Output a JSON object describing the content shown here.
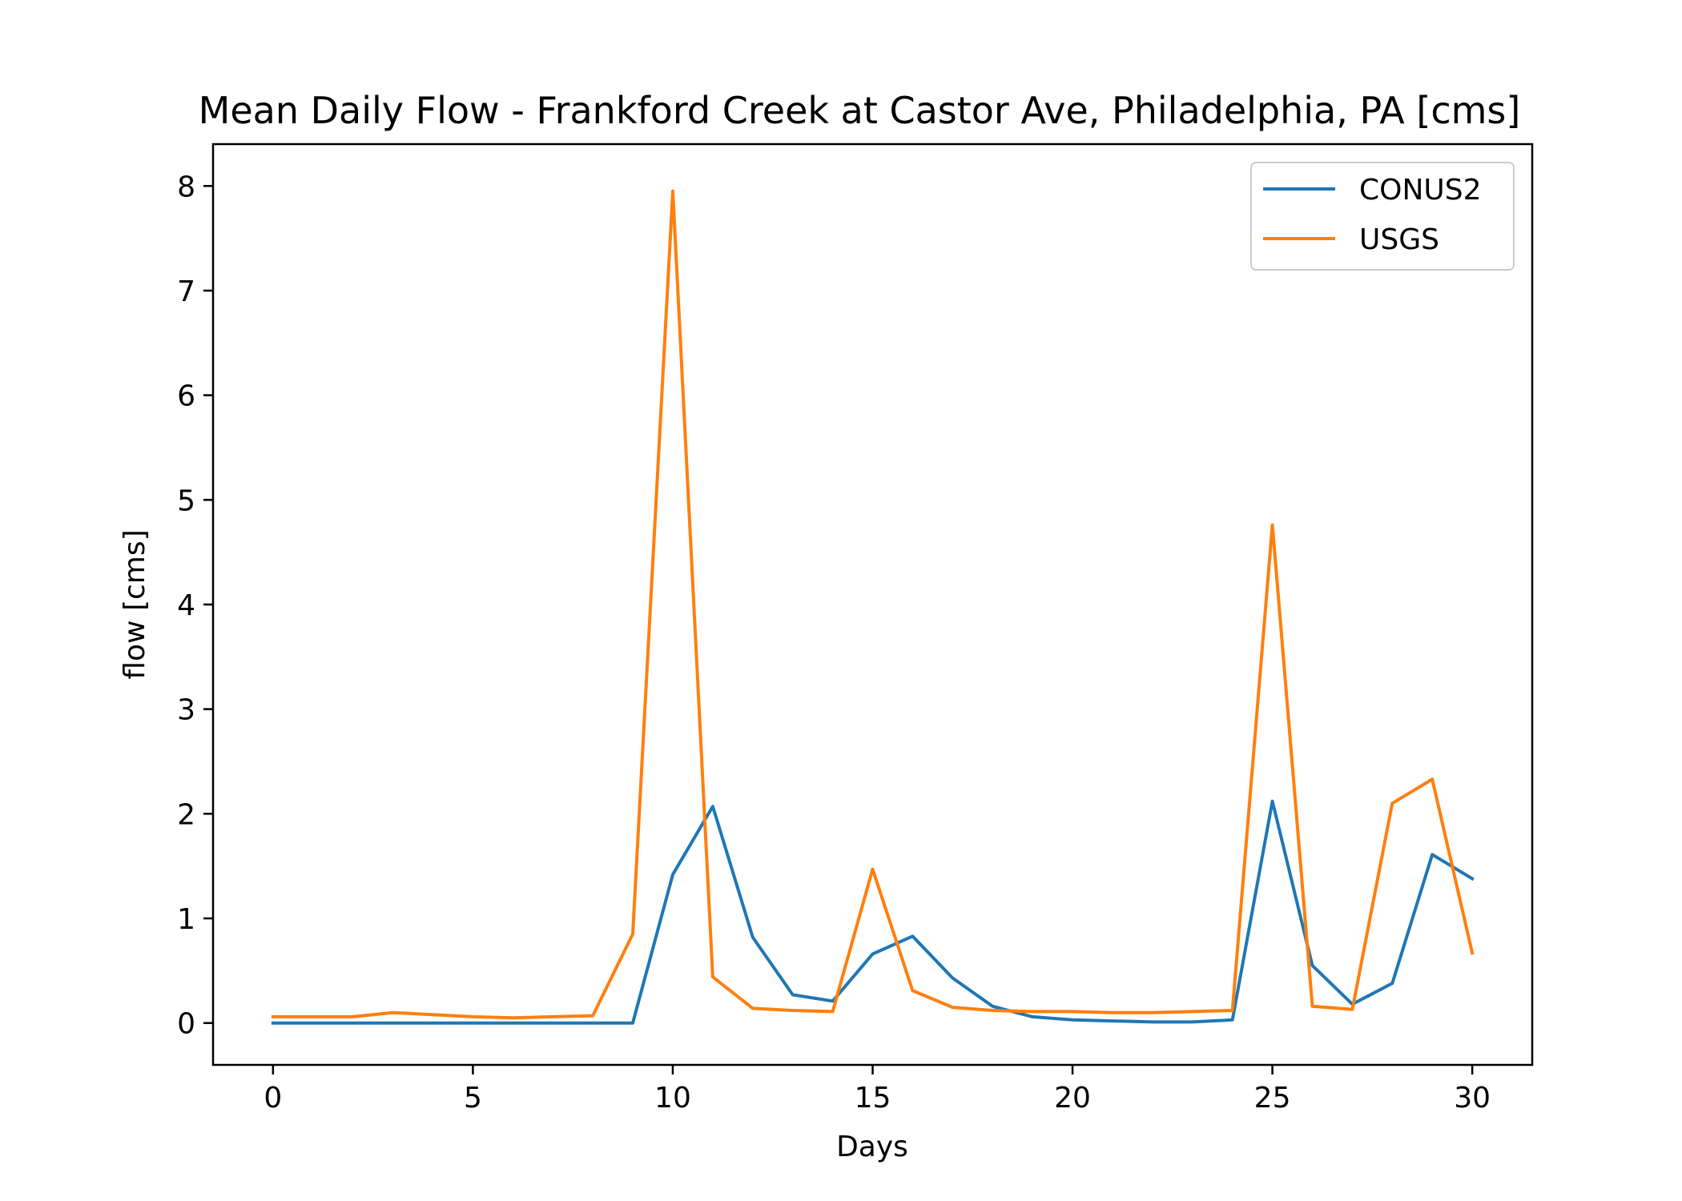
{
  "chart_data": {
    "type": "line",
    "title": "Mean Daily Flow - Frankford Creek at Castor Ave, Philadelphia, PA [cms]",
    "xlabel": "Days",
    "ylabel": "flow [cms]",
    "xlim": [
      -1.5,
      31.5
    ],
    "ylim": [
      -0.4,
      8.4
    ],
    "xticks": [
      0,
      5,
      10,
      15,
      20,
      25,
      30
    ],
    "yticks": [
      0,
      1,
      2,
      3,
      4,
      5,
      6,
      7,
      8
    ],
    "grid": false,
    "legend": "top-right",
    "x": [
      0,
      1,
      2,
      3,
      4,
      5,
      6,
      7,
      8,
      9,
      10,
      11,
      12,
      13,
      14,
      15,
      16,
      17,
      18,
      19,
      20,
      21,
      22,
      23,
      24,
      25,
      26,
      27,
      28,
      29,
      30
    ],
    "series": [
      {
        "name": "CONUS2",
        "color": "#1f77b4",
        "values": [
          0.0,
          0.0,
          0.0,
          0.0,
          0.0,
          0.0,
          0.0,
          0.0,
          0.0,
          0.0,
          1.42,
          2.07,
          0.82,
          0.27,
          0.21,
          0.66,
          0.83,
          0.43,
          0.16,
          0.06,
          0.03,
          0.02,
          0.01,
          0.01,
          0.03,
          2.12,
          0.55,
          0.18,
          0.38,
          1.61,
          1.38
        ]
      },
      {
        "name": "USGS",
        "color": "#ff7f0e",
        "values": [
          0.06,
          0.06,
          0.06,
          0.1,
          0.08,
          0.06,
          0.05,
          0.06,
          0.07,
          0.85,
          7.95,
          0.44,
          0.14,
          0.12,
          0.11,
          1.47,
          0.31,
          0.15,
          0.12,
          0.11,
          0.11,
          0.1,
          0.1,
          0.11,
          0.12,
          4.76,
          0.16,
          0.13,
          2.1,
          2.33,
          0.67
        ]
      }
    ]
  }
}
